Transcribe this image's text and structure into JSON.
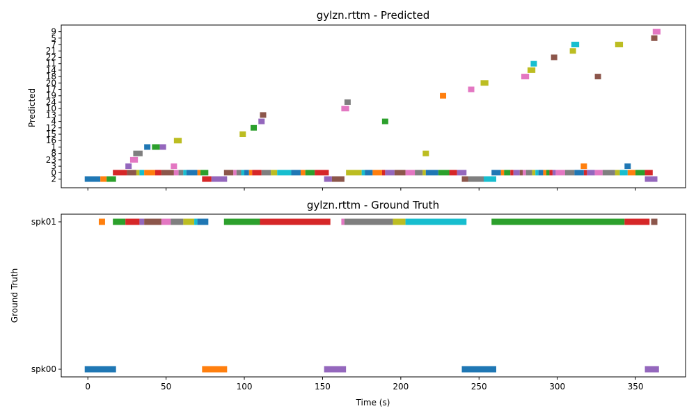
{
  "figure": {
    "x_axis_label": "Time (s)",
    "x_ticks": [
      0,
      50,
      100,
      150,
      200,
      250,
      300,
      350
    ],
    "xlim": [
      -17,
      382
    ]
  },
  "chart_data": [
    {
      "type": "broken-barh",
      "title": "gylzn.rttm - Predicted",
      "ylabel": "Predicted",
      "xlabel": "",
      "xlim": [
        -17,
        382
      ],
      "categories": [
        "2",
        "0",
        "3",
        "23",
        "8",
        "1",
        "16",
        "15",
        "12",
        "4",
        "13",
        "10",
        "24",
        "19",
        "17",
        "20",
        "18",
        "14",
        "11",
        "22",
        "21",
        "7",
        "5",
        "9"
      ],
      "segments": [
        {
          "cat": "2",
          "start": -2,
          "end": 8,
          "color": "#1f77b4"
        },
        {
          "cat": "2",
          "start": 8,
          "end": 12,
          "color": "#ff7f0e"
        },
        {
          "cat": "2",
          "start": 12,
          "end": 18,
          "color": "#2ca02c"
        },
        {
          "cat": "2",
          "start": 73,
          "end": 79,
          "color": "#d62728"
        },
        {
          "cat": "2",
          "start": 79,
          "end": 89,
          "color": "#9467bd"
        },
        {
          "cat": "2",
          "start": 151,
          "end": 156,
          "color": "#9467bd"
        },
        {
          "cat": "2",
          "start": 156,
          "end": 164,
          "color": "#8c564b"
        },
        {
          "cat": "2",
          "start": 239,
          "end": 243,
          "color": "#8c564b"
        },
        {
          "cat": "2",
          "start": 243,
          "end": 253,
          "color": "#7f7f7f"
        },
        {
          "cat": "2",
          "start": 253,
          "end": 261,
          "color": "#17becf"
        },
        {
          "cat": "2",
          "start": 356,
          "end": 364,
          "color": "#9467bd"
        },
        {
          "cat": "0",
          "start": 16,
          "end": 25,
          "color": "#d62728"
        },
        {
          "cat": "0",
          "start": 25,
          "end": 31,
          "color": "#8c564b"
        },
        {
          "cat": "0",
          "start": 31,
          "end": 33,
          "color": "#bcbd22"
        },
        {
          "cat": "0",
          "start": 33,
          "end": 36,
          "color": "#17becf"
        },
        {
          "cat": "0",
          "start": 36,
          "end": 43,
          "color": "#ff7f0e"
        },
        {
          "cat": "0",
          "start": 43,
          "end": 47,
          "color": "#d62728"
        },
        {
          "cat": "0",
          "start": 47,
          "end": 55,
          "color": "#8c564b"
        },
        {
          "cat": "0",
          "start": 55,
          "end": 58,
          "color": "#e377c2"
        },
        {
          "cat": "0",
          "start": 58,
          "end": 61,
          "color": "#7f7f7f"
        },
        {
          "cat": "0",
          "start": 61,
          "end": 63,
          "color": "#17becf"
        },
        {
          "cat": "0",
          "start": 63,
          "end": 70,
          "color": "#1f77b4"
        },
        {
          "cat": "0",
          "start": 70,
          "end": 72,
          "color": "#ff7f0e"
        },
        {
          "cat": "0",
          "start": 72,
          "end": 77,
          "color": "#2ca02c"
        },
        {
          "cat": "0",
          "start": 87,
          "end": 93,
          "color": "#8c564b"
        },
        {
          "cat": "0",
          "start": 93,
          "end": 95,
          "color": "#e377c2"
        },
        {
          "cat": "0",
          "start": 95,
          "end": 98,
          "color": "#7f7f7f"
        },
        {
          "cat": "0",
          "start": 98,
          "end": 100,
          "color": "#17becf"
        },
        {
          "cat": "0",
          "start": 100,
          "end": 103,
          "color": "#1f77b4"
        },
        {
          "cat": "0",
          "start": 103,
          "end": 105,
          "color": "#ff7f0e"
        },
        {
          "cat": "0",
          "start": 105,
          "end": 111,
          "color": "#d62728"
        },
        {
          "cat": "0",
          "start": 111,
          "end": 117,
          "color": "#7f7f7f"
        },
        {
          "cat": "0",
          "start": 117,
          "end": 121,
          "color": "#bcbd22"
        },
        {
          "cat": "0",
          "start": 121,
          "end": 130,
          "color": "#17becf"
        },
        {
          "cat": "0",
          "start": 130,
          "end": 136,
          "color": "#1f77b4"
        },
        {
          "cat": "0",
          "start": 136,
          "end": 139,
          "color": "#ff7f0e"
        },
        {
          "cat": "0",
          "start": 139,
          "end": 145,
          "color": "#2ca02c"
        },
        {
          "cat": "0",
          "start": 145,
          "end": 154,
          "color": "#d62728"
        },
        {
          "cat": "0",
          "start": 165,
          "end": 175,
          "color": "#bcbd22"
        },
        {
          "cat": "0",
          "start": 175,
          "end": 177,
          "color": "#17becf"
        },
        {
          "cat": "0",
          "start": 177,
          "end": 182,
          "color": "#1f77b4"
        },
        {
          "cat": "0",
          "start": 182,
          "end": 188,
          "color": "#ff7f0e"
        },
        {
          "cat": "0",
          "start": 188,
          "end": 190,
          "color": "#d62728"
        },
        {
          "cat": "0",
          "start": 190,
          "end": 196,
          "color": "#9467bd"
        },
        {
          "cat": "0",
          "start": 196,
          "end": 203,
          "color": "#8c564b"
        },
        {
          "cat": "0",
          "start": 203,
          "end": 209,
          "color": "#e377c2"
        },
        {
          "cat": "0",
          "start": 209,
          "end": 214,
          "color": "#7f7f7f"
        },
        {
          "cat": "0",
          "start": 214,
          "end": 216,
          "color": "#bcbd22"
        },
        {
          "cat": "0",
          "start": 216,
          "end": 224,
          "color": "#1f77b4"
        },
        {
          "cat": "0",
          "start": 224,
          "end": 231,
          "color": "#2ca02c"
        },
        {
          "cat": "0",
          "start": 231,
          "end": 236,
          "color": "#d62728"
        },
        {
          "cat": "0",
          "start": 236,
          "end": 242,
          "color": "#9467bd"
        },
        {
          "cat": "0",
          "start": 258,
          "end": 264,
          "color": "#1f77b4"
        },
        {
          "cat": "0",
          "start": 264,
          "end": 266,
          "color": "#ff7f0e"
        },
        {
          "cat": "0",
          "start": 266,
          "end": 270,
          "color": "#2ca02c"
        },
        {
          "cat": "0",
          "start": 270,
          "end": 272,
          "color": "#d62728"
        },
        {
          "cat": "0",
          "start": 272,
          "end": 276,
          "color": "#9467bd"
        },
        {
          "cat": "0",
          "start": 276,
          "end": 278,
          "color": "#8c564b"
        },
        {
          "cat": "0",
          "start": 278,
          "end": 280,
          "color": "#e377c2"
        },
        {
          "cat": "0",
          "start": 280,
          "end": 284,
          "color": "#7f7f7f"
        },
        {
          "cat": "0",
          "start": 284,
          "end": 286,
          "color": "#bcbd22"
        },
        {
          "cat": "0",
          "start": 286,
          "end": 288,
          "color": "#17becf"
        },
        {
          "cat": "0",
          "start": 288,
          "end": 291,
          "color": "#1f77b4"
        },
        {
          "cat": "0",
          "start": 291,
          "end": 293,
          "color": "#ff7f0e"
        },
        {
          "cat": "0",
          "start": 293,
          "end": 295,
          "color": "#2ca02c"
        },
        {
          "cat": "0",
          "start": 295,
          "end": 297,
          "color": "#d62728"
        },
        {
          "cat": "0",
          "start": 297,
          "end": 299,
          "color": "#9467bd"
        },
        {
          "cat": "0",
          "start": 299,
          "end": 305,
          "color": "#e377c2"
        },
        {
          "cat": "0",
          "start": 305,
          "end": 311,
          "color": "#7f7f7f"
        },
        {
          "cat": "0",
          "start": 311,
          "end": 317,
          "color": "#1f77b4"
        },
        {
          "cat": "0",
          "start": 317,
          "end": 319,
          "color": "#d62728"
        },
        {
          "cat": "0",
          "start": 319,
          "end": 324,
          "color": "#9467bd"
        },
        {
          "cat": "0",
          "start": 324,
          "end": 329,
          "color": "#e377c2"
        },
        {
          "cat": "0",
          "start": 329,
          "end": 337,
          "color": "#7f7f7f"
        },
        {
          "cat": "0",
          "start": 337,
          "end": 340,
          "color": "#bcbd22"
        },
        {
          "cat": "0",
          "start": 340,
          "end": 345,
          "color": "#17becf"
        },
        {
          "cat": "0",
          "start": 345,
          "end": 350,
          "color": "#ff7f0e"
        },
        {
          "cat": "0",
          "start": 350,
          "end": 356,
          "color": "#2ca02c"
        },
        {
          "cat": "0",
          "start": 356,
          "end": 361,
          "color": "#d62728"
        },
        {
          "cat": "3",
          "start": 24,
          "end": 28,
          "color": "#9467bd"
        },
        {
          "cat": "3",
          "start": 53,
          "end": 57,
          "color": "#e377c2"
        },
        {
          "cat": "3",
          "start": 315,
          "end": 319,
          "color": "#ff7f0e"
        },
        {
          "cat": "3",
          "start": 343,
          "end": 347,
          "color": "#1f77b4"
        },
        {
          "cat": "23",
          "start": 27,
          "end": 32,
          "color": "#e377c2"
        },
        {
          "cat": "8",
          "start": 29,
          "end": 35,
          "color": "#7f7f7f"
        },
        {
          "cat": "8",
          "start": 214,
          "end": 218,
          "color": "#bcbd22"
        },
        {
          "cat": "1",
          "start": 36,
          "end": 40,
          "color": "#1f77b4"
        },
        {
          "cat": "1",
          "start": 41,
          "end": 46,
          "color": "#2ca02c"
        },
        {
          "cat": "1",
          "start": 46,
          "end": 50,
          "color": "#9467bd"
        },
        {
          "cat": "16",
          "start": 55,
          "end": 60,
          "color": "#bcbd22"
        },
        {
          "cat": "15",
          "start": 97,
          "end": 101,
          "color": "#bcbd22"
        },
        {
          "cat": "12",
          "start": 104,
          "end": 108,
          "color": "#2ca02c"
        },
        {
          "cat": "4",
          "start": 109,
          "end": 113,
          "color": "#9467bd"
        },
        {
          "cat": "4",
          "start": 188,
          "end": 192,
          "color": "#2ca02c"
        },
        {
          "cat": "13",
          "start": 110,
          "end": 114,
          "color": "#8c564b"
        },
        {
          "cat": "10",
          "start": 162,
          "end": 167,
          "color": "#e377c2"
        },
        {
          "cat": "24",
          "start": 164,
          "end": 168,
          "color": "#7f7f7f"
        },
        {
          "cat": "19",
          "start": 225,
          "end": 229,
          "color": "#ff7f0e"
        },
        {
          "cat": "17",
          "start": 243,
          "end": 247,
          "color": "#e377c2"
        },
        {
          "cat": "20",
          "start": 251,
          "end": 256,
          "color": "#bcbd22"
        },
        {
          "cat": "18",
          "start": 277,
          "end": 282,
          "color": "#e377c2"
        },
        {
          "cat": "18",
          "start": 324,
          "end": 328,
          "color": "#8c564b"
        },
        {
          "cat": "14",
          "start": 281,
          "end": 286,
          "color": "#bcbd22"
        },
        {
          "cat": "11",
          "start": 283,
          "end": 287,
          "color": "#17becf"
        },
        {
          "cat": "22",
          "start": 296,
          "end": 300,
          "color": "#8c564b"
        },
        {
          "cat": "21",
          "start": 308,
          "end": 312,
          "color": "#bcbd22"
        },
        {
          "cat": "7",
          "start": 309,
          "end": 314,
          "color": "#17becf"
        },
        {
          "cat": "7",
          "start": 337,
          "end": 342,
          "color": "#bcbd22"
        },
        {
          "cat": "5",
          "start": 360,
          "end": 364,
          "color": "#8c564b"
        },
        {
          "cat": "9",
          "start": 361,
          "end": 366,
          "color": "#e377c2"
        }
      ]
    },
    {
      "type": "broken-barh",
      "title": "gylzn.rttm - Ground Truth",
      "ylabel": "Ground Truth",
      "xlabel": "Time (s)",
      "xlim": [
        -17,
        382
      ],
      "categories": [
        "spk00",
        "spk01"
      ],
      "segments": [
        {
          "cat": "spk01",
          "start": 7,
          "end": 11,
          "color": "#ff7f0e"
        },
        {
          "cat": "spk01",
          "start": 16,
          "end": 24,
          "color": "#2ca02c"
        },
        {
          "cat": "spk01",
          "start": 24,
          "end": 33,
          "color": "#d62728"
        },
        {
          "cat": "spk01",
          "start": 33,
          "end": 36,
          "color": "#9467bd"
        },
        {
          "cat": "spk01",
          "start": 36,
          "end": 47,
          "color": "#8c564b"
        },
        {
          "cat": "spk01",
          "start": 47,
          "end": 53,
          "color": "#e377c2"
        },
        {
          "cat": "spk01",
          "start": 53,
          "end": 61,
          "color": "#7f7f7f"
        },
        {
          "cat": "spk01",
          "start": 61,
          "end": 68,
          "color": "#bcbd22"
        },
        {
          "cat": "spk01",
          "start": 68,
          "end": 70,
          "color": "#17becf"
        },
        {
          "cat": "spk01",
          "start": 70,
          "end": 77,
          "color": "#1f77b4"
        },
        {
          "cat": "spk01",
          "start": 87,
          "end": 110,
          "color": "#2ca02c"
        },
        {
          "cat": "spk01",
          "start": 110,
          "end": 155,
          "color": "#d62728"
        },
        {
          "cat": "spk01",
          "start": 162,
          "end": 164,
          "color": "#e377c2"
        },
        {
          "cat": "spk01",
          "start": 164,
          "end": 195,
          "color": "#7f7f7f"
        },
        {
          "cat": "spk01",
          "start": 195,
          "end": 203,
          "color": "#bcbd22"
        },
        {
          "cat": "spk01",
          "start": 203,
          "end": 242,
          "color": "#17becf"
        },
        {
          "cat": "spk01",
          "start": 258,
          "end": 343,
          "color": "#2ca02c"
        },
        {
          "cat": "spk01",
          "start": 343,
          "end": 359,
          "color": "#d62728"
        },
        {
          "cat": "spk01",
          "start": 360,
          "end": 364,
          "color": "#8c564b"
        },
        {
          "cat": "spk00",
          "start": -2,
          "end": 18,
          "color": "#1f77b4"
        },
        {
          "cat": "spk00",
          "start": 73,
          "end": 89,
          "color": "#ff7f0e"
        },
        {
          "cat": "spk00",
          "start": 151,
          "end": 165,
          "color": "#9467bd"
        },
        {
          "cat": "spk00",
          "start": 239,
          "end": 261,
          "color": "#1f77b4"
        },
        {
          "cat": "spk00",
          "start": 356,
          "end": 365,
          "color": "#9467bd"
        }
      ]
    }
  ]
}
